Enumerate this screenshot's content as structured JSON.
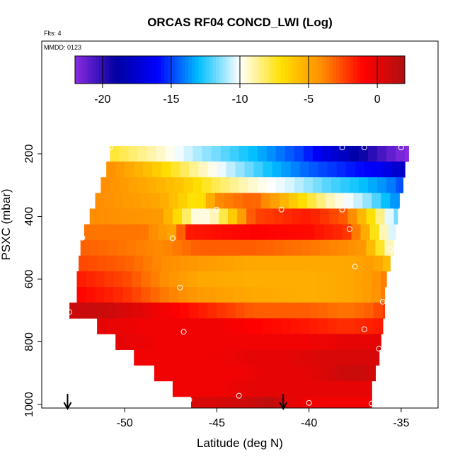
{
  "header": {
    "title": "ORCAS RF04 CONCD_LWI (Log)",
    "flts_label": "Flts: 4",
    "mmdd_label": "MMDD: 0123"
  },
  "chart_data": {
    "type": "heatmap",
    "title": "ORCAS RF04 CONCD_LWI (Log)",
    "xlabel": "Latitude (deg N)",
    "ylabel": "PSXC (mbar)",
    "xlim": [
      -54.5,
      -33
    ],
    "ylim": [
      1010,
      100
    ],
    "x_ticks": [
      -50,
      -45,
      -40,
      -35
    ],
    "x_tick_labels": [
      "-50",
      "-45",
      "-40",
      "-35"
    ],
    "y_ticks": [
      200,
      400,
      600,
      800,
      1000
    ],
    "y_tick_labels": [
      "200",
      "400",
      "600",
      "800",
      "1000"
    ],
    "colorbar": {
      "range": [
        -22,
        2
      ],
      "ticks": [
        -20,
        -15,
        -10,
        -5,
        0
      ],
      "tick_labels": [
        "-20",
        "-15",
        "-10",
        "-5",
        "0"
      ],
      "colors": [
        "#8a2be2",
        "#0000a0",
        "#0000ff",
        "#00bfff",
        "#ffffff",
        "#ffe000",
        "#ff8c00",
        "#ff0000",
        "#b01010"
      ]
    },
    "bands": [
      {
        "p_top": 175,
        "p_bot": 225,
        "lat_min": -50.8,
        "lat_max": -34.6,
        "profile": [
          [
            -50.8,
            -7.5
          ],
          [
            -48.5,
            -9
          ],
          [
            -46,
            -11
          ],
          [
            -43,
            -13
          ],
          [
            -40.5,
            -15
          ],
          [
            -38.5,
            -17.5
          ],
          [
            -36.5,
            -20
          ],
          [
            -35.2,
            -21.5
          ],
          [
            -34.6,
            -22
          ]
        ]
      },
      {
        "p_top": 225,
        "p_bot": 275,
        "lat_min": -51,
        "lat_max": -34.8,
        "profile": [
          [
            -51,
            -4
          ],
          [
            -48.5,
            -6
          ],
          [
            -46,
            -9
          ],
          [
            -44,
            -11
          ],
          [
            -42,
            -13
          ],
          [
            -40,
            -14.5
          ],
          [
            -38,
            -15.5
          ],
          [
            -36,
            -16.5
          ],
          [
            -34.8,
            -18
          ]
        ]
      },
      {
        "p_top": 275,
        "p_bot": 325,
        "lat_min": -51.3,
        "lat_max": -34.9,
        "profile": [
          [
            -51.3,
            -4
          ],
          [
            -49,
            -5
          ],
          [
            -47,
            -6
          ],
          [
            -45,
            -8
          ],
          [
            -43,
            -9.5
          ],
          [
            -41,
            -10.5
          ],
          [
            -39,
            -12
          ],
          [
            -37,
            -13
          ],
          [
            -35.6,
            -14
          ],
          [
            -34.9,
            -15
          ]
        ]
      },
      {
        "p_top": 325,
        "p_bot": 375,
        "lat_min": -51.6,
        "lat_max": -35.1,
        "profile": [
          [
            -51.6,
            -4
          ],
          [
            -48,
            -5
          ],
          [
            -46,
            -7.5
          ],
          [
            -45,
            -4
          ],
          [
            -43,
            -3
          ],
          [
            -41,
            -6
          ],
          [
            -39,
            -9
          ],
          [
            -37,
            -11
          ],
          [
            -35.8,
            -13
          ],
          [
            -35.1,
            -14
          ]
        ]
      },
      {
        "p_top": 375,
        "p_bot": 425,
        "lat_min": -51.9,
        "lat_max": -35.2,
        "profile": [
          [
            -51.9,
            -4
          ],
          [
            -48,
            -4.5
          ],
          [
            -46,
            -10
          ],
          [
            -45,
            -9
          ],
          [
            -43,
            -2.5
          ],
          [
            -40,
            -1.5
          ],
          [
            -38,
            -3
          ],
          [
            -37,
            -6
          ],
          [
            -36,
            -9
          ],
          [
            -35.2,
            -12
          ]
        ]
      },
      {
        "p_top": 425,
        "p_bot": 475,
        "lat_min": -52.2,
        "lat_max": -35.3,
        "profile": [
          [
            -52.2,
            -3.5
          ],
          [
            -49,
            -3.5
          ],
          [
            -47.5,
            -5
          ],
          [
            -46.5,
            -1.5
          ],
          [
            -43,
            -1
          ],
          [
            -40,
            -1.2
          ],
          [
            -38,
            -2
          ],
          [
            -37,
            -5
          ],
          [
            -36,
            -9
          ],
          [
            -35.3,
            -11
          ]
        ]
      },
      {
        "p_top": 475,
        "p_bot": 525,
        "lat_min": -52.4,
        "lat_max": -35.4,
        "profile": [
          [
            -52.4,
            -3
          ],
          [
            -50,
            -3.5
          ],
          [
            -48,
            -4
          ],
          [
            -46,
            -3
          ],
          [
            -43,
            -3
          ],
          [
            -40,
            -3.5
          ],
          [
            -38,
            -4
          ],
          [
            -37,
            -4.5
          ],
          [
            -36,
            -8
          ],
          [
            -35.4,
            -10
          ]
        ]
      },
      {
        "p_top": 525,
        "p_bot": 575,
        "lat_min": -52.5,
        "lat_max": -35.6,
        "profile": [
          [
            -52.5,
            -2.5
          ],
          [
            -50,
            -3
          ],
          [
            -48,
            -4
          ],
          [
            -46,
            -4.5
          ],
          [
            -43,
            -5
          ],
          [
            -40,
            -5
          ],
          [
            -38,
            -5
          ],
          [
            -36.5,
            -4.5
          ],
          [
            -35.6,
            -6
          ]
        ]
      },
      {
        "p_top": 575,
        "p_bot": 625,
        "lat_min": -52.6,
        "lat_max": -35.8,
        "profile": [
          [
            -52.6,
            -1.5
          ],
          [
            -50,
            -2.5
          ],
          [
            -48,
            -4
          ],
          [
            -46,
            -5
          ],
          [
            -43,
            -5.2
          ],
          [
            -40,
            -5.2
          ],
          [
            -38,
            -5
          ],
          [
            -36.5,
            -4.5
          ],
          [
            -35.8,
            -3.5
          ]
        ]
      },
      {
        "p_top": 625,
        "p_bot": 675,
        "lat_min": -52.6,
        "lat_max": -35.9,
        "profile": [
          [
            -52.6,
            -1
          ],
          [
            -50,
            -2
          ],
          [
            -48,
            -3.5
          ],
          [
            -46,
            -4.5
          ],
          [
            -43,
            -5
          ],
          [
            -40,
            -5.2
          ],
          [
            -38,
            -5
          ],
          [
            -36.5,
            -4.5
          ],
          [
            -35.9,
            -3.5
          ]
        ]
      },
      {
        "p_top": 675,
        "p_bot": 725,
        "lat_min": -53,
        "lat_max": -35.9,
        "profile": [
          [
            -53,
            1
          ],
          [
            -51,
            1
          ],
          [
            -49,
            0
          ],
          [
            -47,
            -1
          ],
          [
            -45,
            -2
          ],
          [
            -43,
            -3
          ],
          [
            -40,
            -3
          ],
          [
            -38,
            -3.5
          ],
          [
            -36.5,
            -3
          ],
          [
            -35.9,
            -2
          ]
        ]
      },
      {
        "p_top": 725,
        "p_bot": 775,
        "lat_min": -51.5,
        "lat_max": -36,
        "profile": [
          [
            -51.5,
            0
          ],
          [
            -49,
            -0.5
          ],
          [
            -47,
            -0.5
          ],
          [
            -45,
            -0.5
          ],
          [
            -43,
            -1
          ],
          [
            -40,
            -1.5
          ],
          [
            -38,
            -2
          ],
          [
            -36,
            -1.5
          ]
        ]
      },
      {
        "p_top": 775,
        "p_bot": 825,
        "lat_min": -50.5,
        "lat_max": -36.1,
        "profile": [
          [
            -50.5,
            0
          ],
          [
            -48,
            -0.5
          ],
          [
            -46,
            -0.5
          ],
          [
            -44,
            -0.5
          ],
          [
            -42,
            -0.5
          ],
          [
            -40,
            -0.5
          ],
          [
            -38,
            0
          ],
          [
            -36.1,
            0
          ]
        ]
      },
      {
        "p_top": 825,
        "p_bot": 875,
        "lat_min": -49.5,
        "lat_max": -36.2,
        "profile": [
          [
            -49.5,
            -0.5
          ],
          [
            -47,
            -0.5
          ],
          [
            -45,
            -0.5
          ],
          [
            -43,
            0
          ],
          [
            -41,
            0
          ],
          [
            -39,
            0.5
          ],
          [
            -37,
            0.5
          ],
          [
            -36.2,
            0.5
          ]
        ]
      },
      {
        "p_top": 875,
        "p_bot": 925,
        "lat_min": -48.4,
        "lat_max": -36.4,
        "profile": [
          [
            -48.4,
            -0.5
          ],
          [
            -46,
            -0.5
          ],
          [
            -44,
            -0.5
          ],
          [
            -42,
            0
          ],
          [
            -40,
            0
          ],
          [
            -38,
            1
          ],
          [
            -37,
            1
          ],
          [
            -36.4,
            0.5
          ]
        ]
      },
      {
        "p_top": 925,
        "p_bot": 975,
        "lat_min": -47.4,
        "lat_max": -36.6,
        "profile": [
          [
            -47.4,
            -0.5
          ],
          [
            -45,
            -0.5
          ],
          [
            -43,
            0
          ],
          [
            -41,
            0
          ],
          [
            -39,
            0
          ],
          [
            -37.5,
            0
          ],
          [
            -36.6,
            0
          ]
        ]
      },
      {
        "p_top": 975,
        "p_bot": 1010,
        "lat_min": -46.4,
        "lat_max": -36.6,
        "profile": [
          [
            -46.4,
            0.5
          ],
          [
            -45,
            0.5
          ],
          [
            -43,
            1
          ],
          [
            -42,
            1.5
          ],
          [
            -41,
            0
          ],
          [
            -40,
            -0.5
          ],
          [
            -38,
            -0.5
          ],
          [
            -36.6,
            -0.5
          ]
        ]
      }
    ],
    "circle_points": [
      {
        "lat": -50.8,
        "p": 180
      },
      {
        "lat": -38.2,
        "p": 180
      },
      {
        "lat": -37,
        "p": 180
      },
      {
        "lat": -35,
        "p": 180
      },
      {
        "lat": -45,
        "p": 378
      },
      {
        "lat": -41.5,
        "p": 378
      },
      {
        "lat": -38.2,
        "p": 378
      },
      {
        "lat": -35,
        "p": 380
      },
      {
        "lat": -37.8,
        "p": 440
      },
      {
        "lat": -52.3,
        "p": 468
      },
      {
        "lat": -47.4,
        "p": 470
      },
      {
        "lat": -35.6,
        "p": 505
      },
      {
        "lat": -37.5,
        "p": 560
      },
      {
        "lat": -47,
        "p": 627
      },
      {
        "lat": -36,
        "p": 672
      },
      {
        "lat": -53,
        "p": 705
      },
      {
        "lat": -46.8,
        "p": 768
      },
      {
        "lat": -37,
        "p": 760
      },
      {
        "lat": -36.2,
        "p": 822
      },
      {
        "lat": -46.5,
        "p": 985
      },
      {
        "lat": -43.8,
        "p": 972
      },
      {
        "lat": -40,
        "p": 995
      },
      {
        "lat": -36.6,
        "p": 997
      }
    ],
    "arrows": [
      {
        "lat": -53.1,
        "p": 1010
      },
      {
        "lat": -41.4,
        "p": 1010
      }
    ]
  }
}
